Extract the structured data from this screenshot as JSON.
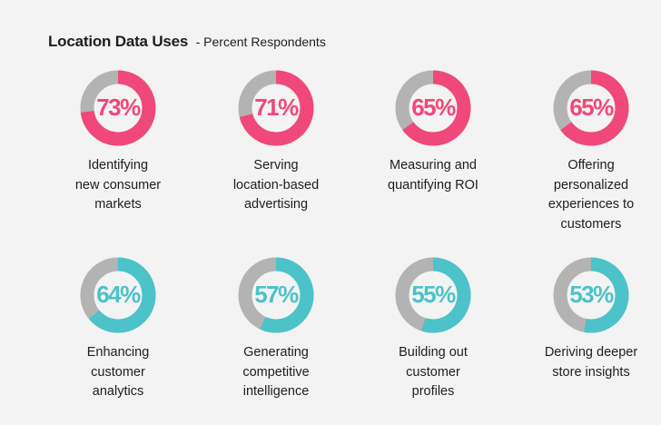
{
  "title": "Location Data Uses",
  "subtitle": "- Percent Respondents",
  "colors": {
    "pink": "#f0487a",
    "teal": "#4cc2c9",
    "track": "#b3b3b3",
    "background": "#f3f3f3"
  },
  "chart_data": {
    "type": "pie",
    "title": "Location Data Uses",
    "subtitle": "- Percent Respondents",
    "categories": [
      "Identifying new consumer markets",
      "Serving location-based advertising",
      "Measuring and quantifying ROI",
      "Offering personalized experiences to customers",
      "Enhancing customer analytics",
      "Generating competitive intelligence",
      "Building out customer profiles",
      "Deriving deeper store insights"
    ],
    "values": [
      73,
      71,
      65,
      65,
      64,
      57,
      55,
      53
    ],
    "labels": [
      "73%",
      "71%",
      "65%",
      "65%",
      "64%",
      "57%",
      "55%",
      "53%"
    ],
    "label_lines": [
      [
        "Identifying",
        "new consumer",
        "markets"
      ],
      [
        "Serving",
        "location-based",
        "advertising"
      ],
      [
        "Measuring and",
        "quantifying ROI"
      ],
      [
        "Offering",
        "personalized",
        "experiences to",
        "customers"
      ],
      [
        "Enhancing",
        "customer",
        "analytics"
      ],
      [
        "Generating",
        "competitive",
        "intelligence"
      ],
      [
        "Building out",
        "customer",
        "profiles"
      ],
      [
        "Deriving deeper",
        "store insights"
      ]
    ],
    "series_colors": [
      "pink",
      "pink",
      "pink",
      "pink",
      "teal",
      "teal",
      "teal",
      "teal"
    ]
  }
}
